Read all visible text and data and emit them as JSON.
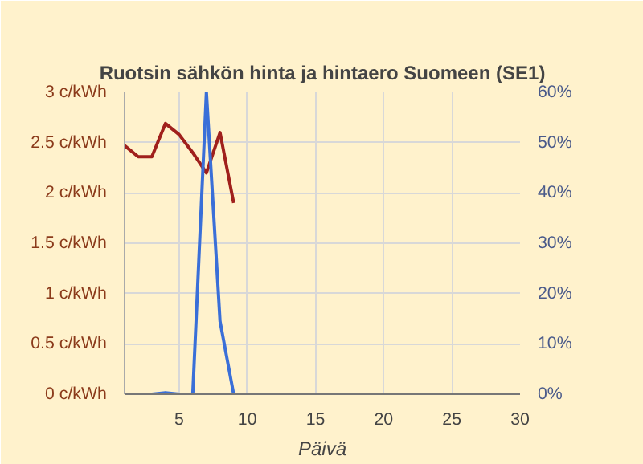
{
  "chart_data": {
    "type": "line",
    "title": "Ruotsin sähkön hinta ja hintaero Suomeen (SE1)",
    "xlabel": "Päivä",
    "x": [
      1,
      2,
      3,
      4,
      5,
      6,
      7,
      8,
      9
    ],
    "series": [
      {
        "color": "#a0201c",
        "values": [
          2.47,
          2.36,
          2.36,
          2.69,
          2.58,
          2.4,
          2.2,
          2.6,
          1.9
        ]
      },
      {
        "color": "#3a6fd8",
        "axis": "y2",
        "values": [
          0,
          0,
          0,
          0.3,
          0,
          0,
          60,
          14.5,
          0
        ]
      }
    ],
    "xlim": [
      1,
      30
    ],
    "xticks": [
      5,
      10,
      15,
      20,
      25,
      30
    ],
    "ylim": [
      0,
      3
    ],
    "yticks": [
      {
        "value": 0,
        "label": "0 c/kWh"
      },
      {
        "value": 0.5,
        "label": "0.5 c/kWh"
      },
      {
        "value": 1,
        "label": "1 c/kWh"
      },
      {
        "value": 1.5,
        "label": "1.5 c/kWh"
      },
      {
        "value": 2,
        "label": "2 c/kWh"
      },
      {
        "value": 2.5,
        "label": "2.5 c/kWh"
      },
      {
        "value": 3,
        "label": "3 c/kWh"
      }
    ],
    "y2lim": [
      0,
      60
    ],
    "y2ticks": [
      {
        "value": 0,
        "label": "0%"
      },
      {
        "value": 10,
        "label": "10%"
      },
      {
        "value": 20,
        "label": "20%"
      },
      {
        "value": 30,
        "label": "30%"
      },
      {
        "value": 40,
        "label": "40%"
      },
      {
        "value": 50,
        "label": "50%"
      },
      {
        "value": 60,
        "label": "60%"
      }
    ],
    "grid": true,
    "marker": "none",
    "line_style": "solid"
  }
}
